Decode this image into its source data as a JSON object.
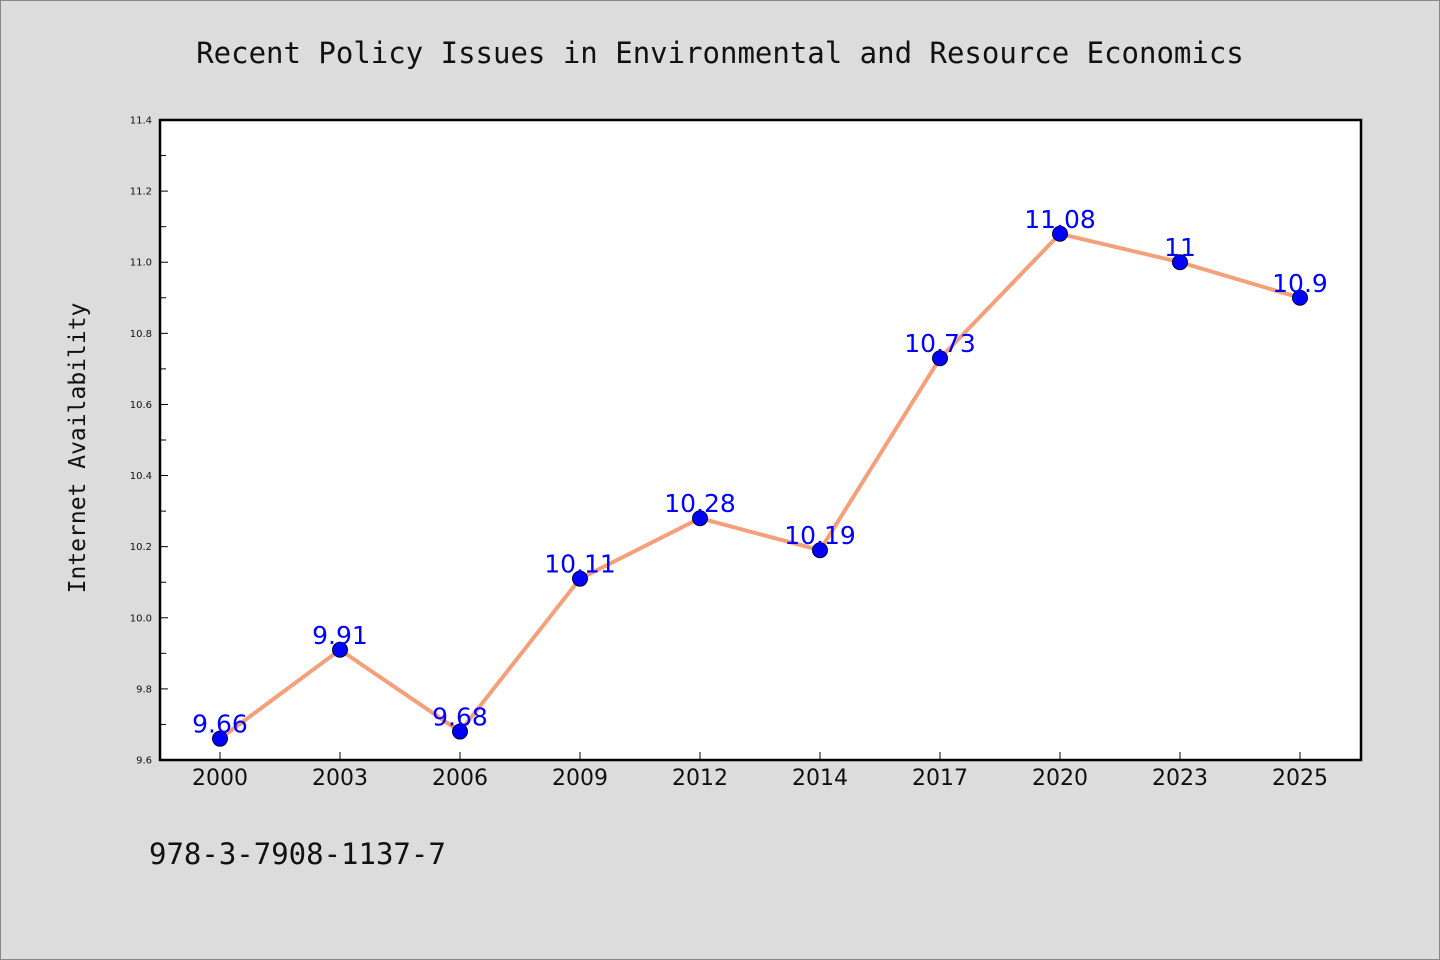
{
  "chart_data": {
    "type": "line",
    "title": "Recent Policy Issues in Environmental and Resource Economics",
    "xlabel": "",
    "ylabel": "Internet Availability",
    "categories": [
      "2000",
      "2003",
      "2006",
      "2009",
      "2012",
      "2014",
      "2017",
      "2020",
      "2023",
      "2025"
    ],
    "series": [
      {
        "values": [
          9.66,
          9.91,
          9.68,
          10.11,
          10.28,
          10.19,
          10.73,
          11.08,
          11,
          10.9
        ],
        "data_labels": [
          "9.66",
          "9.91",
          "9.68",
          "10.11",
          "10.28",
          "10.19",
          "10.73",
          "11.08",
          "11",
          "10.9"
        ],
        "line_color": "#f4a07a",
        "marker_color": "#0000ff"
      }
    ],
    "ylim": [
      9.6,
      11.4
    ],
    "yticks": [
      "9.6",
      "9.8",
      "10.0",
      "10.2",
      "10.4",
      "10.6",
      "10.8",
      "11.0",
      "11.2",
      "11.4"
    ],
    "grid": false,
    "legend": "none"
  },
  "footer": {
    "isbn": "978-3-7908-1137-7"
  },
  "colors": {
    "background": "#dcdcdc",
    "plot_background": "#ffffff",
    "axis": "#000000"
  }
}
